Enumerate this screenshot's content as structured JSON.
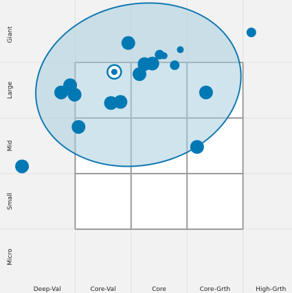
{
  "chart_data": {
    "type": "scatter",
    "title": "",
    "x_categories": [
      "Deep-Val",
      "Core-Val",
      "Core",
      "Core-Grth",
      "High-Grth"
    ],
    "y_categories": [
      "Micro",
      "Small",
      "Mid",
      "Large",
      "Giant"
    ],
    "xlim": [
      -0.5,
      4.5
    ],
    "ylim": [
      -0.5,
      4.5
    ],
    "grid": true,
    "box": {
      "x_range": [
        0.5,
        3.5
      ],
      "y_range": [
        0.5,
        3.5
      ]
    },
    "ellipse": {
      "cx": 1.63,
      "cy": 3.1,
      "rx": 1.85,
      "ry": 1.45,
      "rotate_deg": -12
    },
    "centroid": {
      "x": 1.2,
      "y": 3.33
    },
    "points": [
      {
        "x": -0.45,
        "y": 1.63,
        "size": "large"
      },
      {
        "x": 1.45,
        "y": 3.85,
        "size": "large"
      },
      {
        "x": 1.65,
        "y": 3.29,
        "size": "large"
      },
      {
        "x": 1.74,
        "y": 3.47,
        "size": "large"
      },
      {
        "x": 1.88,
        "y": 3.48,
        "size": "large"
      },
      {
        "x": 2.01,
        "y": 3.64,
        "size": "medium"
      },
      {
        "x": 2.09,
        "y": 3.62,
        "size": "small"
      },
      {
        "x": 0.25,
        "y": 2.96,
        "size": "large"
      },
      {
        "x": 0.41,
        "y": 3.09,
        "size": "large"
      },
      {
        "x": 0.49,
        "y": 2.92,
        "size": "large"
      },
      {
        "x": 1.14,
        "y": 2.77,
        "size": "large"
      },
      {
        "x": 1.31,
        "y": 2.79,
        "size": "large"
      },
      {
        "x": 2.28,
        "y": 3.45,
        "size": "medium"
      },
      {
        "x": 2.38,
        "y": 3.73,
        "size": "small"
      },
      {
        "x": 2.84,
        "y": 2.96,
        "size": "large"
      },
      {
        "x": 3.65,
        "y": 4.04,
        "size": "medium"
      },
      {
        "x": 0.56,
        "y": 2.34,
        "size": "large"
      },
      {
        "x": 2.68,
        "y": 1.98,
        "size": "large"
      }
    ],
    "colors": {
      "point": "#0078b4",
      "ellipse_fill": "#a9cee0",
      "ellipse_stroke": "#0f78b0",
      "box_stroke": "#9a9a9a",
      "grid": "#e0e0e0",
      "background_outside": "#f2f2f2",
      "centroid": "#0078b4"
    }
  }
}
